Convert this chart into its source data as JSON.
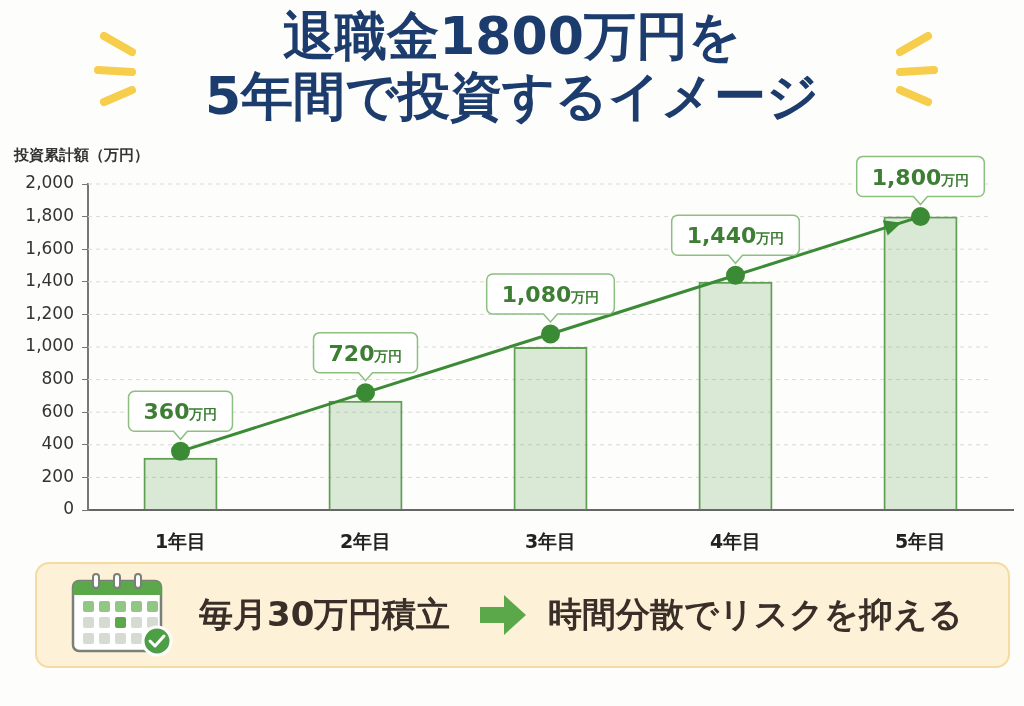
{
  "chart_data": {
    "type": "bar",
    "title": "退職金1800万円を\n5年間で投資するイメージ",
    "ylabel": "投資累計額（万円）",
    "categories": [
      "1年目",
      "2年目",
      "3年目",
      "4年目",
      "5年目"
    ],
    "series": [
      {
        "color": "#5f9f52",
        "values": [
          320,
          670,
          1000,
          1400,
          1800
        ]
      },
      {
        "type": "line",
        "color": "#3b8a35",
        "values": [
          360,
          720,
          1080,
          1440,
          1800
        ],
        "value_labels": [
          "360万円",
          "720万円",
          "1,080万円",
          "1,440万円",
          "1,800万円"
        ]
      }
    ],
    "ylim": [
      0,
      2000
    ],
    "yticks": [
      0,
      200,
      400,
      600,
      800,
      {
        "value": 1000,
        "label": "1,000"
      },
      {
        "value": 1200,
        "label": "1,200"
      },
      {
        "value": 1400,
        "label": "1,400"
      },
      {
        "value": 1600,
        "label": "1,600"
      },
      {
        "value": 1800,
        "label": "1,800"
      },
      {
        "value": 2000,
        "label": "2,000"
      }
    ],
    "grid": "y",
    "marker": "circle",
    "line_style": "solid",
    "annotations": [
      "毎月30万円積立",
      "時間分散でリスクを抑える"
    ]
  }
}
